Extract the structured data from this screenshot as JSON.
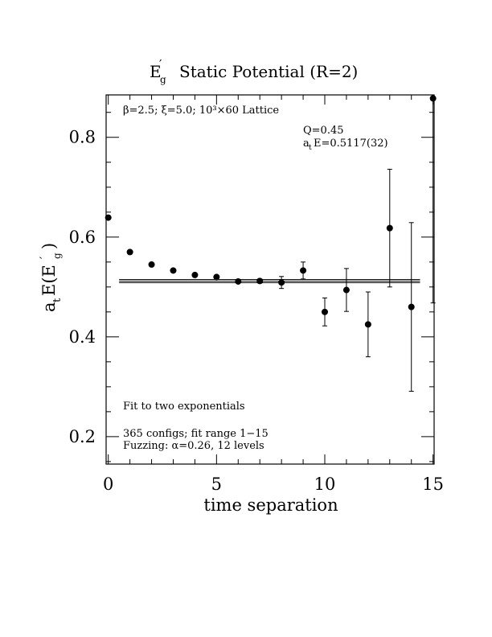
{
  "chart_data": {
    "type": "scatter",
    "title_main": "E",
    "title_sub": "g",
    "title_prime": "′",
    "title_rest": "Static Potential (R=2)",
    "xlabel": "time separation",
    "ylabel": {
      "a": "a",
      "t_sub": "t",
      "E": "E(E",
      "prime": "′",
      "g_sub": "g",
      "close": ")"
    },
    "xlim": [
      -0.1,
      15.05
    ],
    "ylim": [
      0.145,
      0.885
    ],
    "xticks_major": [
      0,
      5,
      10,
      15
    ],
    "xtick_labels": [
      "0",
      "5",
      "10",
      "15"
    ],
    "yticks_major": [
      0.2,
      0.4,
      0.6,
      0.8
    ],
    "ytick_labels": [
      "0.2",
      "0.4",
      "0.6",
      "0.8"
    ],
    "grid": false,
    "points": [
      {
        "x": 0,
        "y": 0.639,
        "err": 0
      },
      {
        "x": 1,
        "y": 0.57,
        "err": 0
      },
      {
        "x": 2,
        "y": 0.545,
        "err": 0
      },
      {
        "x": 3,
        "y": 0.533,
        "err": 0
      },
      {
        "x": 4,
        "y": 0.524,
        "err": 0
      },
      {
        "x": 5,
        "y": 0.52,
        "err": 0
      },
      {
        "x": 6,
        "y": 0.511,
        "err": 0
      },
      {
        "x": 7,
        "y": 0.512,
        "err": 0.004
      },
      {
        "x": 8,
        "y": 0.509,
        "err": 0.012
      },
      {
        "x": 9,
        "y": 0.533,
        "err": 0.017
      },
      {
        "x": 10,
        "y": 0.45,
        "err": 0.028
      },
      {
        "x": 11,
        "y": 0.494,
        "err": 0.043
      },
      {
        "x": 12,
        "y": 0.425,
        "err": 0.065
      },
      {
        "x": 13,
        "y": 0.618,
        "err": 0.118
      },
      {
        "x": 14,
        "y": 0.46,
        "err": 0.169
      },
      {
        "x": 15,
        "y": 0.878,
        "err": 0.41
      }
    ],
    "fit": {
      "value": 0.5117,
      "error": 0.0032,
      "x_range": [
        0.5,
        14.4
      ]
    },
    "annotations": {
      "lattice": "β=2.5; ξ=5.0; 10³×60 Lattice",
      "q": "Q=0.45",
      "fit_result_prefix": "a",
      "fit_result_sub": "t",
      "fit_result_rest": "E=0.5117(32)",
      "fit_type": "Fit to two exponentials",
      "configs": "365 configs; fit range 1−15",
      "fuzzing": "Fuzzing: α=0.26, 12 levels"
    }
  }
}
